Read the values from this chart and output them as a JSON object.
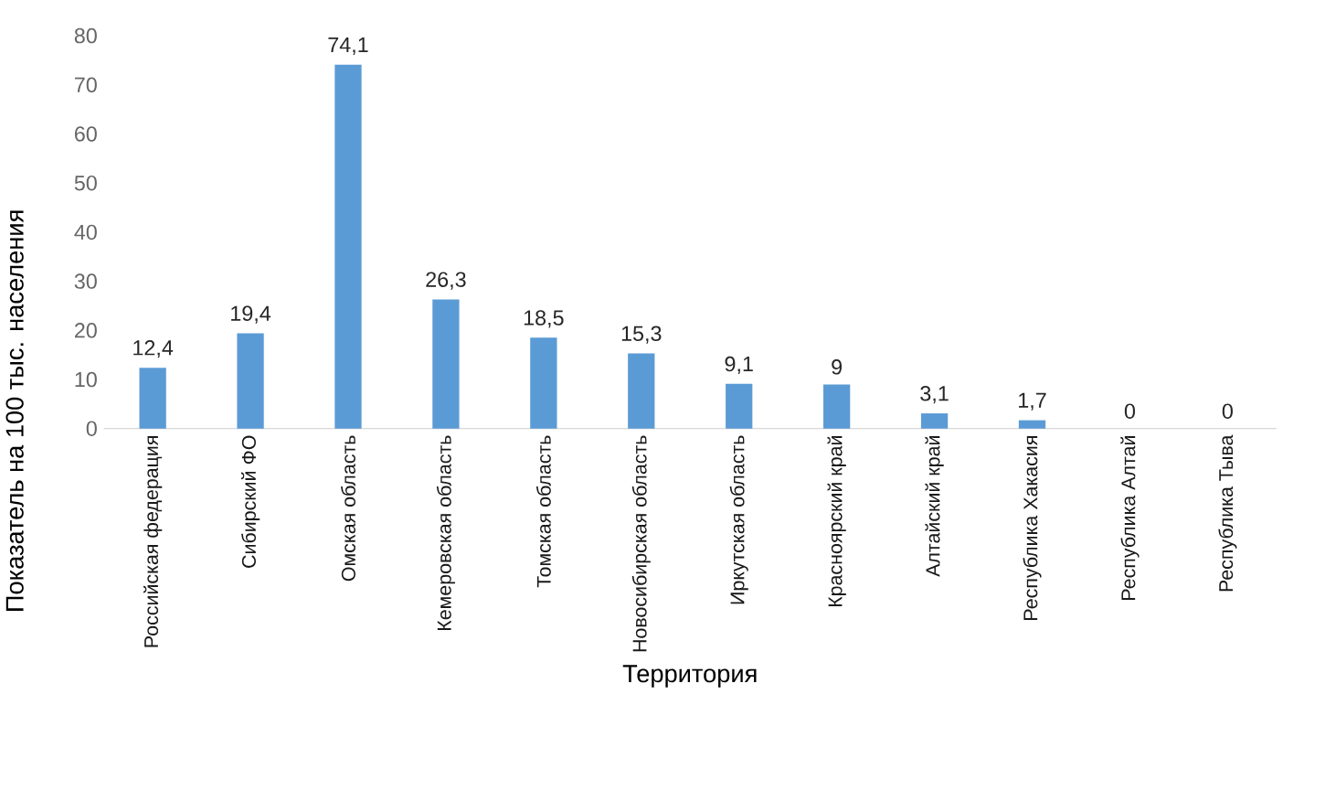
{
  "chart_data": {
    "type": "bar",
    "xlabel": "Территория",
    "ylabel": "Показатель на 100 тыс. населения",
    "categories": [
      "Российская федерация",
      "Сибирский ФО",
      "Омская область",
      "Кемеровская область",
      "Томская область",
      "Новосибирская область",
      "Иркутская область",
      "Красноярский край",
      "Алтайский край",
      "Республика Хакасия",
      "Республика Алтай",
      "Республика Тыва"
    ],
    "values": [
      12.4,
      19.4,
      74.1,
      26.3,
      18.5,
      15.3,
      9.1,
      9,
      3.1,
      1.7,
      0,
      0
    ],
    "value_labels": [
      "12,4",
      "19,4",
      "74,1",
      "26,3",
      "18,5",
      "15,3",
      "9,1",
      "9",
      "3,1",
      "1,7",
      "0",
      "0"
    ],
    "color": "#5b9bd5",
    "ylim": [
      0,
      80
    ],
    "yticks": [
      0,
      10,
      20,
      30,
      40,
      50,
      60,
      70,
      80
    ]
  }
}
